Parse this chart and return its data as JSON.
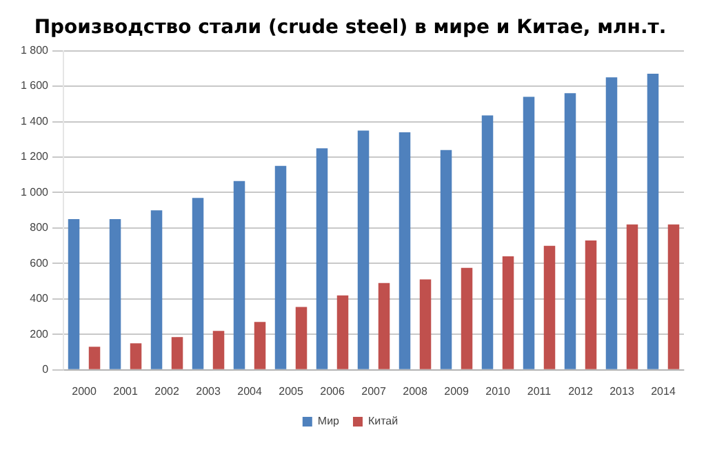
{
  "chart_data": {
    "type": "bar",
    "title": "Производство стали (crude steel) в мире и Китае, млн.т.",
    "categories": [
      "2000",
      "2001",
      "2002",
      "2003",
      "2004",
      "2005",
      "2006",
      "2007",
      "2008",
      "2009",
      "2010",
      "2011",
      "2012",
      "2013",
      "2014"
    ],
    "series": [
      {
        "name": "Мир",
        "color": "#4f81bd",
        "values": [
          850,
          850,
          900,
          970,
          1065,
          1150,
          1250,
          1350,
          1340,
          1240,
          1435,
          1540,
          1560,
          1650,
          1670
        ]
      },
      {
        "name": "Китай",
        "color": "#c0504d",
        "values": [
          130,
          150,
          185,
          220,
          270,
          355,
          420,
          490,
          510,
          575,
          640,
          700,
          730,
          820,
          820
        ]
      }
    ],
    "ylim": [
      0,
      1800
    ],
    "yticks": [
      0,
      200,
      400,
      600,
      800,
      {
        "value": 1000,
        "label": "1 000"
      },
      {
        "value": 1200,
        "label": "1 200"
      },
      {
        "value": 1400,
        "label": "1 400"
      },
      {
        "value": 1600,
        "label": "1 600"
      },
      {
        "value": 1800,
        "label": "1 800"
      }
    ],
    "grid": "y",
    "legend": "bottom"
  }
}
